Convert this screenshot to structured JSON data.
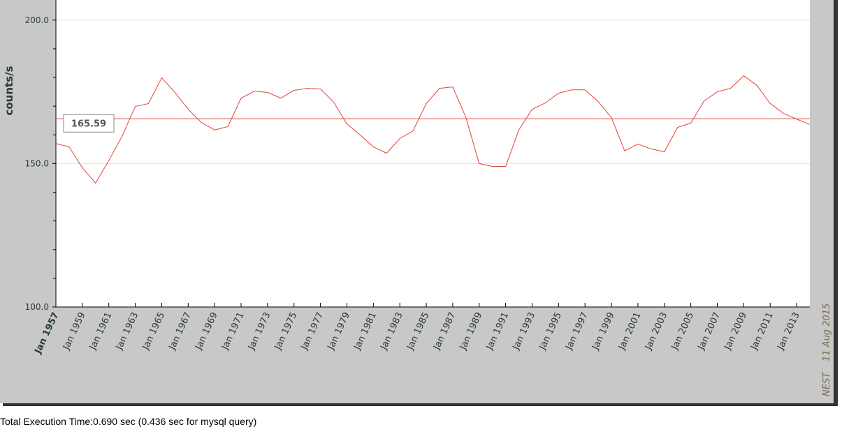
{
  "chart_data": {
    "type": "line",
    "y_label": "counts/s",
    "source": "NEST",
    "date": "11 Aug 2015",
    "footer": "Total Execution Time:0.690 sec (0.436 sec for mysql query)",
    "x": [
      1957,
      1958,
      1959,
      1960,
      1961,
      1962,
      1963,
      1964,
      1965,
      1966,
      1967,
      1968,
      1969,
      1970,
      1971,
      1972,
      1973,
      1974,
      1975,
      1976,
      1977,
      1978,
      1979,
      1980,
      1981,
      1982,
      1983,
      1984,
      1985,
      1986,
      1987,
      1988,
      1989,
      1990,
      1991,
      1992,
      1993,
      1994,
      1995,
      1996,
      1997,
      1998,
      1999,
      2000,
      2001,
      2002,
      2003,
      2004,
      2005,
      2006,
      2007,
      2008,
      2009,
      2010,
      2011,
      2012,
      2013,
      2014
    ],
    "series": [
      {
        "color": "#e0463a",
        "values": [
          157.0,
          155.8,
          148.5,
          143.2,
          151.0,
          159.5,
          169.9,
          170.9,
          179.9,
          174.8,
          168.9,
          164.3,
          161.7,
          162.9,
          172.8,
          175.2,
          174.8,
          172.8,
          175.5,
          176.2,
          176.0,
          171.4,
          163.8,
          160.0,
          155.8,
          153.6,
          158.7,
          161.4,
          170.9,
          176.2,
          176.7,
          166.0,
          150.0,
          149.0,
          149.0,
          161.7,
          168.9,
          171.1,
          174.5,
          175.7,
          175.7,
          171.6,
          166.0,
          154.4,
          156.8,
          155.1,
          154.1,
          162.6,
          164.1,
          171.8,
          175.0,
          176.2,
          180.6,
          177.2,
          170.9,
          167.5,
          165.5,
          163.6
        ]
      }
    ],
    "reference_line": 165.59,
    "reference_color": "#e0463a",
    "xlim": [
      1957,
      2014
    ],
    "ylim": [
      100,
      207
    ],
    "xticks": [
      {
        "value": 1957,
        "label": "Jan 1957"
      },
      {
        "value": 1959,
        "label": "Jan 1959"
      },
      {
        "value": 1961,
        "label": "Jan 1961"
      },
      {
        "value": 1963,
        "label": "Jan 1963"
      },
      {
        "value": 1965,
        "label": "Jan 1965"
      },
      {
        "value": 1967,
        "label": "Jan 1967"
      },
      {
        "value": 1969,
        "label": "Jan 1969"
      },
      {
        "value": 1971,
        "label": "Jan 1971"
      },
      {
        "value": 1973,
        "label": "Jan 1973"
      },
      {
        "value": 1975,
        "label": "Jan 1975"
      },
      {
        "value": 1977,
        "label": "Jan 1977"
      },
      {
        "value": 1979,
        "label": "Jan 1979"
      },
      {
        "value": 1981,
        "label": "Jan 1981"
      },
      {
        "value": 1983,
        "label": "Jan 1983"
      },
      {
        "value": 1985,
        "label": "Jan 1985"
      },
      {
        "value": 1987,
        "label": "Jan 1987"
      },
      {
        "value": 1989,
        "label": "Jan 1989"
      },
      {
        "value": 1991,
        "label": "Jan 1991"
      },
      {
        "value": 1993,
        "label": "Jan 1993"
      },
      {
        "value": 1995,
        "label": "Jan 1995"
      },
      {
        "value": 1997,
        "label": "Jan 1997"
      },
      {
        "value": 1999,
        "label": "Jan 1999"
      },
      {
        "value": 2001,
        "label": "Jan 2001"
      },
      {
        "value": 2003,
        "label": "Jan 2003"
      },
      {
        "value": 2005,
        "label": "Jan 2005"
      },
      {
        "value": 2007,
        "label": "Jan 2007"
      },
      {
        "value": 2009,
        "label": "Jan 2009"
      },
      {
        "value": 2011,
        "label": "Jan 2011"
      },
      {
        "value": 2013,
        "label": "Jan 2013"
      }
    ],
    "yticks": [
      {
        "value": 100,
        "label": "100.0"
      },
      {
        "value": 150,
        "label": "150.0"
      },
      {
        "value": 200,
        "label": "200.0"
      }
    ],
    "yminor_ticks": [
      110,
      120,
      130,
      140,
      160,
      170,
      180,
      190
    ],
    "grid": true
  }
}
